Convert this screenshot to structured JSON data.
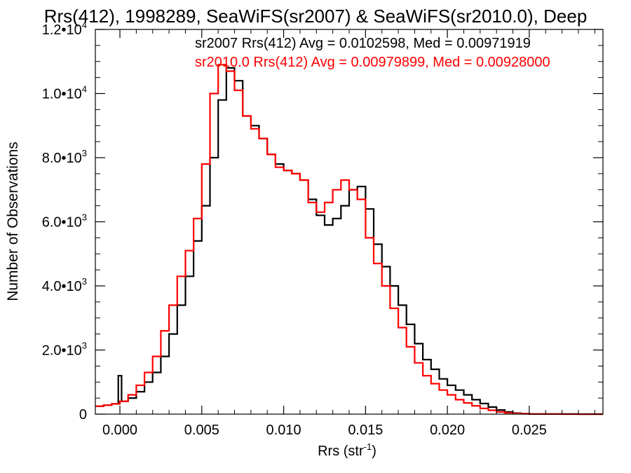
{
  "chart_data": {
    "type": "line",
    "title": "Rrs(412), 1998289, SeaWiFS(sr2007) & SeaWiFS(sr2010.0), Deep",
    "xlabel": "Rrs (str",
    "xlabel_sup": "-1",
    "xlabel_end": ")",
    "ylabel": "Number of Observations",
    "xlim": [
      -0.0015,
      0.0295
    ],
    "ylim": [
      0,
      12000
    ],
    "grid": false,
    "x_ticks": [
      {
        "value": 0.0,
        "label": "0.000"
      },
      {
        "value": 0.005,
        "label": "0.005"
      },
      {
        "value": 0.01,
        "label": "0.010"
      },
      {
        "value": 0.015,
        "label": "0.015"
      },
      {
        "value": 0.02,
        "label": "0.020"
      },
      {
        "value": 0.025,
        "label": "0.025"
      }
    ],
    "y_ticks": [
      {
        "value": 0,
        "mantissa": "0",
        "exp": ""
      },
      {
        "value": 2000,
        "mantissa": "2.0•10",
        "exp": "3"
      },
      {
        "value": 4000,
        "mantissa": "4.0•10",
        "exp": "3"
      },
      {
        "value": 6000,
        "mantissa": "6.0•10",
        "exp": "3"
      },
      {
        "value": 8000,
        "mantissa": "8.0•10",
        "exp": "3"
      },
      {
        "value": 10000,
        "mantissa": "1.0•10",
        "exp": "4"
      },
      {
        "value": 12000,
        "mantissa": "1.2•10",
        "exp": "4"
      }
    ],
    "annotations": [
      {
        "text": "sr2007 Rrs(412) Avg = 0.0102598, Med = 0.00971919",
        "color": "#000000"
      },
      {
        "text": "sr2010.0 Rrs(412) Avg = 0.00979899, Med = 0.00928000",
        "color": "#ff0000"
      }
    ],
    "series": [
      {
        "color": "#000000",
        "x": [
          -0.0015,
          -0.001,
          -0.0005,
          -0.0001,
          0.0,
          0.0001,
          0.0005,
          0.001,
          0.0015,
          0.002,
          0.0025,
          0.003,
          0.0035,
          0.004,
          0.0045,
          0.005,
          0.0055,
          0.006,
          0.0065,
          0.007,
          0.0075,
          0.008,
          0.0085,
          0.009,
          0.0095,
          0.01,
          0.0105,
          0.011,
          0.0115,
          0.012,
          0.0125,
          0.013,
          0.0135,
          0.014,
          0.0145,
          0.015,
          0.0155,
          0.016,
          0.0165,
          0.017,
          0.0175,
          0.018,
          0.0185,
          0.019,
          0.0195,
          0.02,
          0.0205,
          0.021,
          0.0215,
          0.022,
          0.0225,
          0.023,
          0.0235,
          0.024,
          0.0245,
          0.025,
          0.026,
          0.027,
          0.028,
          0.029,
          0.0295
        ],
        "y": [
          250,
          280,
          320,
          1200,
          1200,
          400,
          500,
          700,
          1000,
          1300,
          1800,
          2500,
          3400,
          4300,
          5400,
          6500,
          8000,
          9800,
          10800,
          10400,
          9300,
          9000,
          8600,
          8100,
          7800,
          7600,
          7500,
          7300,
          6700,
          6200,
          5900,
          6100,
          6500,
          7000,
          7100,
          6400,
          5300,
          4600,
          4000,
          3400,
          2800,
          2200,
          1700,
          1400,
          1100,
          900,
          750,
          600,
          450,
          330,
          220,
          130,
          70,
          30,
          15,
          5,
          3,
          2,
          0,
          0,
          0
        ]
      },
      {
        "color": "#ff0000",
        "x": [
          -0.0015,
          -0.001,
          -0.0005,
          0.0,
          0.0005,
          0.001,
          0.0015,
          0.002,
          0.0025,
          0.003,
          0.0035,
          0.004,
          0.0045,
          0.005,
          0.0055,
          0.006,
          0.0065,
          0.007,
          0.0075,
          0.008,
          0.0085,
          0.009,
          0.0095,
          0.01,
          0.0105,
          0.011,
          0.0115,
          0.012,
          0.0125,
          0.013,
          0.0135,
          0.014,
          0.0145,
          0.015,
          0.0155,
          0.016,
          0.0165,
          0.017,
          0.0175,
          0.018,
          0.0185,
          0.019,
          0.0195,
          0.02,
          0.0205,
          0.021,
          0.0215,
          0.022,
          0.0225,
          0.023,
          0.0235,
          0.024,
          0.0245,
          0.025,
          0.026,
          0.027,
          0.028,
          0.029,
          0.0295
        ],
        "y": [
          250,
          280,
          320,
          400,
          600,
          900,
          1300,
          1800,
          2600,
          3400,
          4300,
          5100,
          6100,
          7800,
          10000,
          10900,
          10700,
          10100,
          9300,
          8900,
          8600,
          8100,
          7700,
          7600,
          7500,
          7300,
          6600,
          6300,
          6600,
          7000,
          7300,
          7000,
          6700,
          5500,
          4700,
          4000,
          3300,
          2700,
          2100,
          1600,
          1200,
          950,
          750,
          600,
          450,
          350,
          260,
          180,
          120,
          70,
          40,
          20,
          10,
          5,
          2,
          1,
          0,
          0,
          0
        ]
      }
    ]
  }
}
